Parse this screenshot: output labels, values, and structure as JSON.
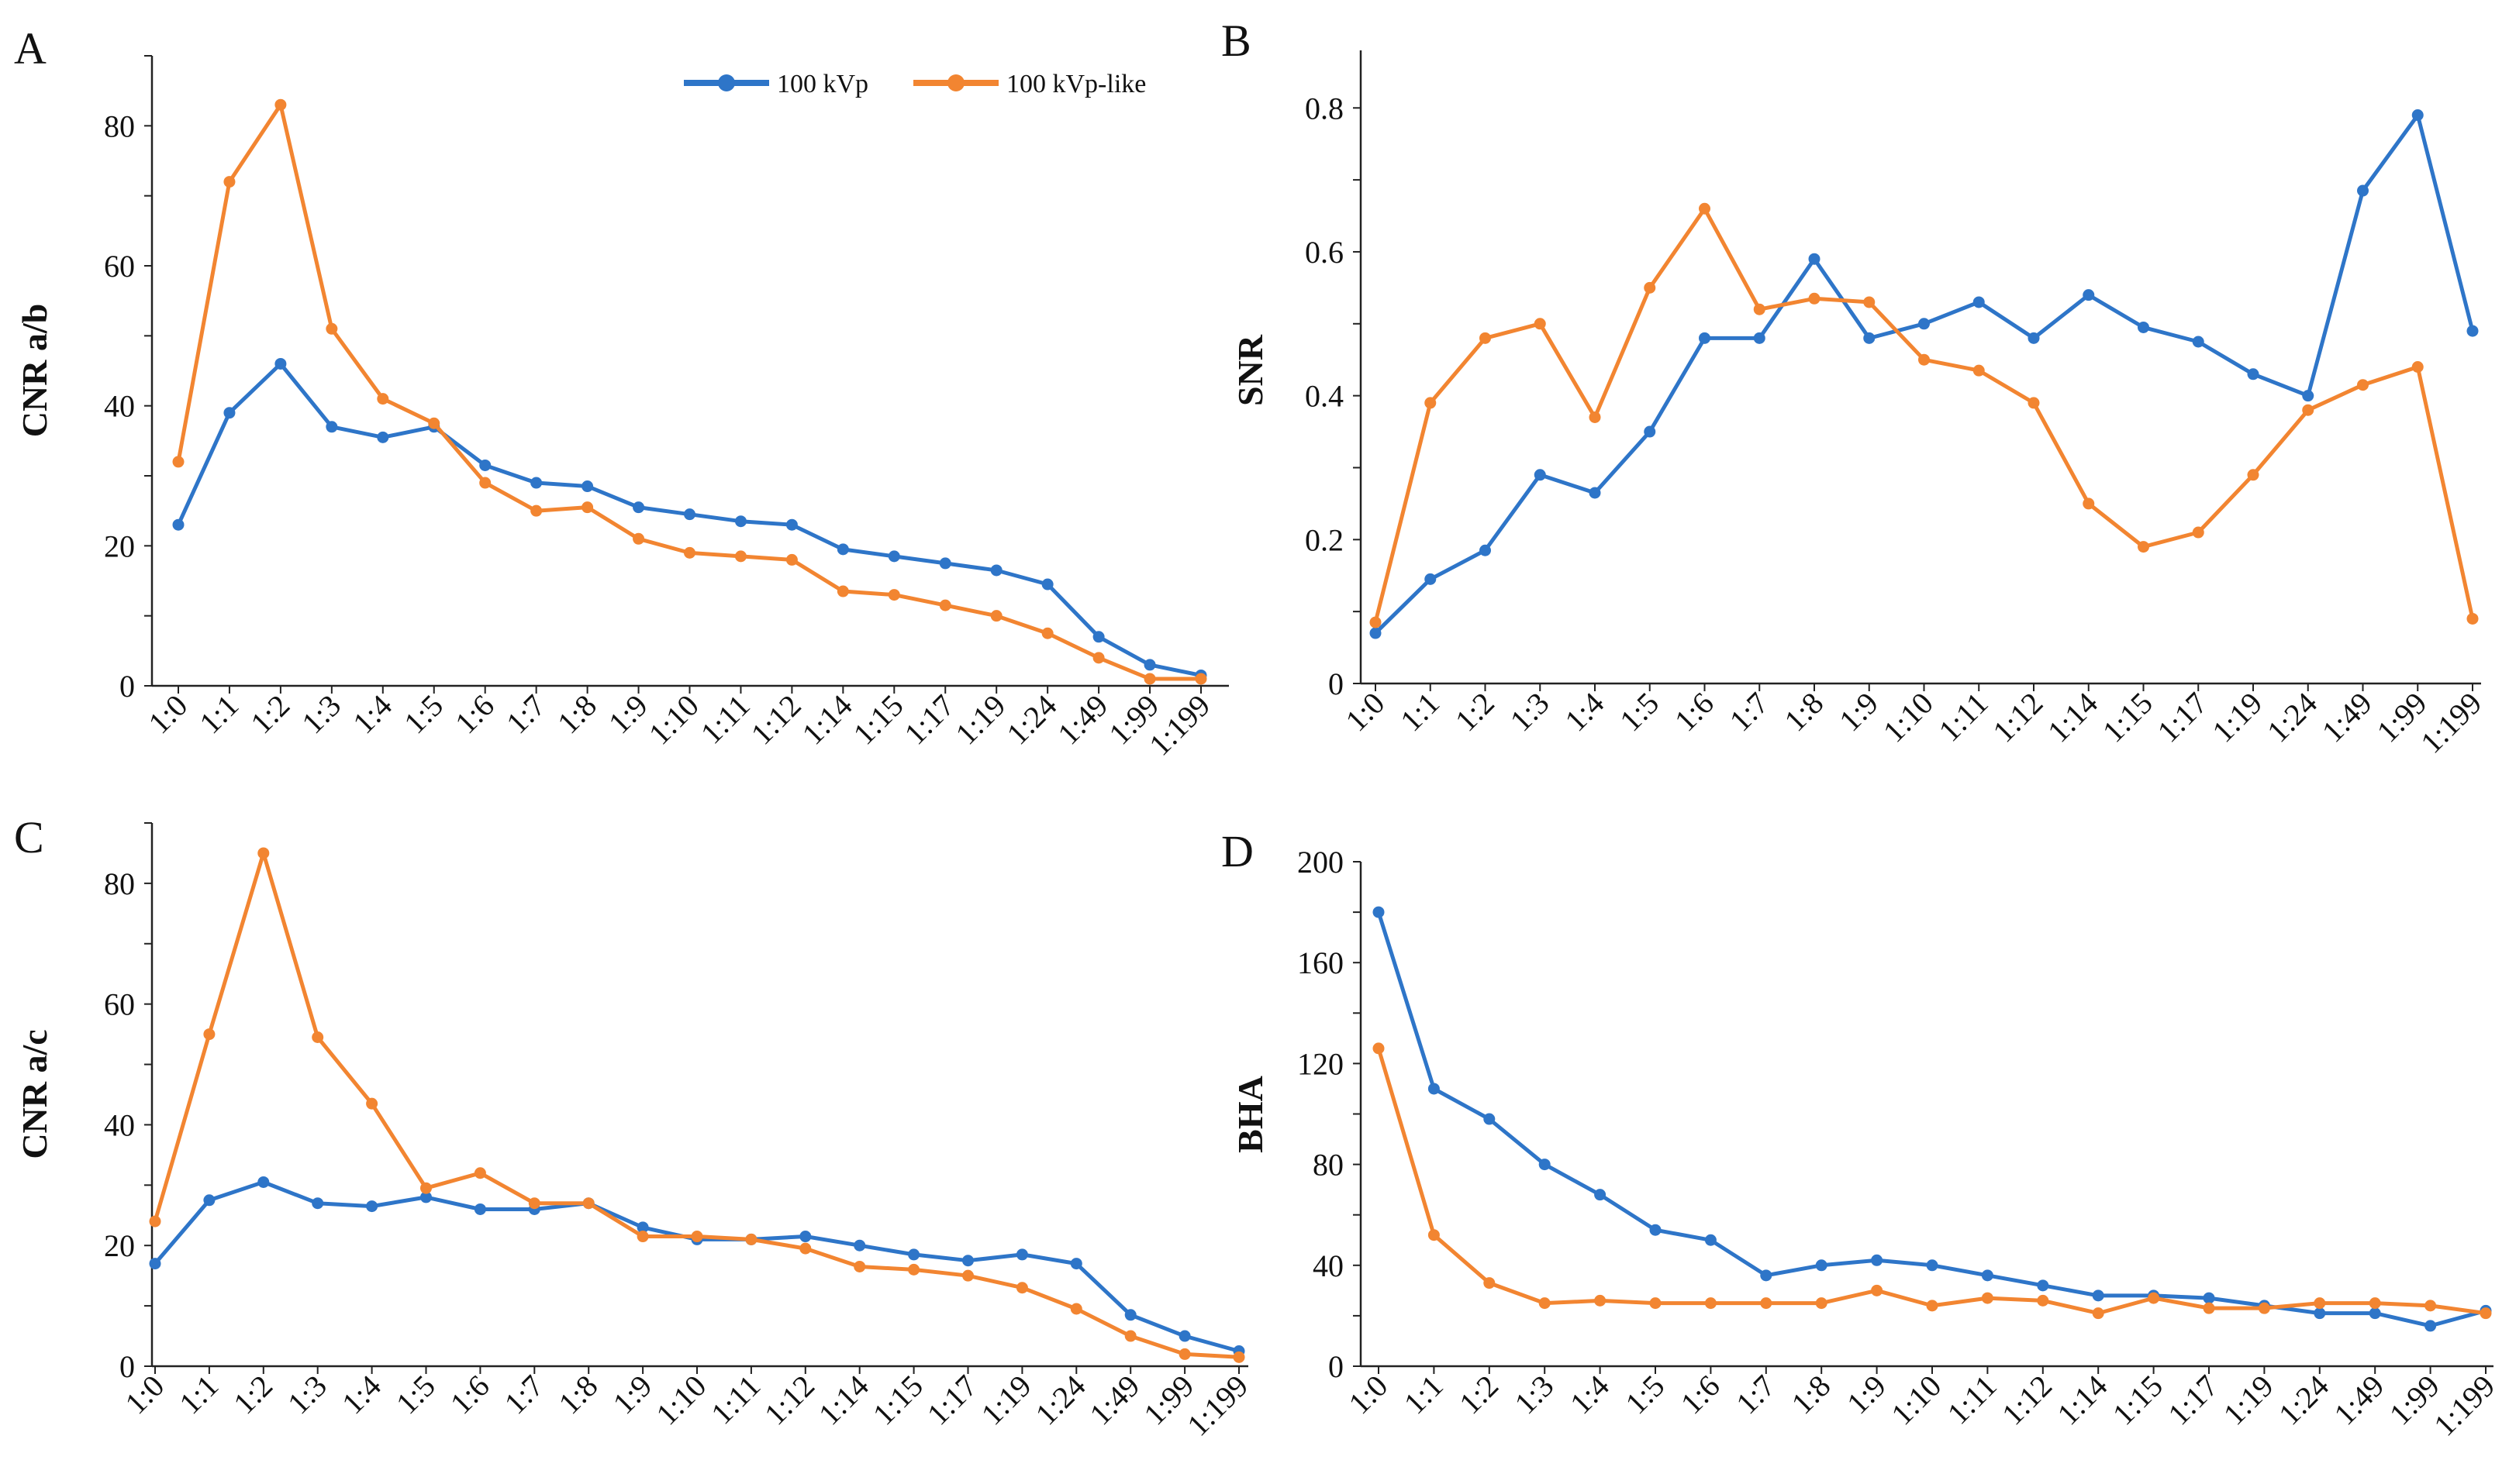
{
  "legend": {
    "items": [
      {
        "name": "100 kVp",
        "color": "#2e75c8"
      },
      {
        "name": "100 kVp-like",
        "color": "#f28531"
      }
    ]
  },
  "chart_data": [
    {
      "panel": "A",
      "type": "line",
      "title": "",
      "xlabel": "",
      "ylabel": "CNR a/b",
      "ylim": [
        0,
        90
      ],
      "yticks": [
        0,
        20,
        40,
        60,
        80
      ],
      "categories": [
        "1:0",
        "1:1",
        "1:2",
        "1:3",
        "1:4",
        "1:5",
        "1:6",
        "1:7",
        "1:8",
        "1:9",
        "1:10",
        "1:11",
        "1:12",
        "1:14",
        "1:15",
        "1:17",
        "1:19",
        "1:24",
        "1:49",
        "1:99",
        "1:199"
      ],
      "series": [
        {
          "name": "100 kVp",
          "color": "#2e75c8",
          "values": [
            23,
            39,
            46,
            37,
            35.5,
            37,
            31.5,
            29,
            28.5,
            25.5,
            24.5,
            23.5,
            23,
            19.5,
            18.5,
            17.5,
            16.5,
            14.5,
            7,
            3,
            1.5
          ]
        },
        {
          "name": "100 kVp-like",
          "color": "#f28531",
          "values": [
            32,
            72,
            83,
            51,
            41,
            37.5,
            29,
            25,
            25.5,
            21,
            19,
            18.5,
            18,
            13.5,
            13,
            11.5,
            10,
            7.5,
            4,
            1,
            1
          ]
        }
      ]
    },
    {
      "panel": "B",
      "type": "line",
      "title": "",
      "xlabel": "",
      "ylabel": "SNR",
      "ylim": [
        0,
        0.88
      ],
      "yticks": [
        0,
        0.2,
        0.4,
        0.6,
        0.8
      ],
      "ytick_labels": [
        "0",
        "0.2",
        "0.4",
        "0.6",
        "0.8"
      ],
      "categories": [
        "1:0",
        "1:1",
        "1:2",
        "1:3",
        "1:4",
        "1:5",
        "1:6",
        "1:7",
        "1:8",
        "1:9",
        "1:10",
        "1:11",
        "1:12",
        "1:14",
        "1:15",
        "1:17",
        "1:19",
        "1:24",
        "1:49",
        "1:99",
        "1:199"
      ],
      "series": [
        {
          "name": "100 kVp",
          "color": "#2e75c8",
          "values": [
            0.07,
            0.145,
            0.185,
            0.29,
            0.265,
            0.35,
            0.48,
            0.48,
            0.59,
            0.48,
            0.5,
            0.53,
            0.48,
            0.54,
            0.495,
            0.475,
            0.43,
            0.4,
            0.685,
            0.79,
            0.49
          ]
        },
        {
          "name": "100 kVp-like",
          "color": "#f28531",
          "values": [
            0.085,
            0.39,
            0.48,
            0.5,
            0.37,
            0.55,
            0.66,
            0.52,
            0.535,
            0.53,
            0.45,
            0.435,
            0.39,
            0.25,
            0.19,
            0.21,
            0.29,
            0.38,
            0.415,
            0.44,
            0.09
          ]
        }
      ]
    },
    {
      "panel": "C",
      "type": "line",
      "title": "",
      "xlabel": "",
      "ylabel": "CNR a/c",
      "ylim": [
        0,
        90
      ],
      "yticks": [
        0,
        20,
        40,
        60,
        80
      ],
      "categories": [
        "1:0",
        "1:1",
        "1:2",
        "1:3",
        "1:4",
        "1:5",
        "1:6",
        "1:7",
        "1:8",
        "1:9",
        "1:10",
        "1:11",
        "1:12",
        "1:14",
        "1:15",
        "1:17",
        "1:19",
        "1:24",
        "1:49",
        "1:99",
        "1:199"
      ],
      "series": [
        {
          "name": "100 kVp",
          "color": "#2e75c8",
          "values": [
            17,
            27.5,
            30.5,
            27,
            26.5,
            28,
            26,
            26,
            27,
            23,
            21,
            21,
            21.5,
            20,
            18.5,
            17.5,
            18.5,
            17,
            8.5,
            5,
            2.5
          ]
        },
        {
          "name": "100 kVp-like",
          "color": "#f28531",
          "values": [
            24,
            55,
            85,
            54.5,
            43.5,
            29.5,
            32,
            27,
            27,
            21.5,
            21.5,
            21,
            19.5,
            16.5,
            16,
            15,
            13,
            9.5,
            5,
            2,
            1.5
          ]
        }
      ]
    },
    {
      "panel": "D",
      "type": "line",
      "title": "",
      "xlabel": "",
      "ylabel": "BHA",
      "ylim": [
        0,
        200
      ],
      "yticks": [
        0,
        40,
        80,
        120,
        160,
        200
      ],
      "categories": [
        "1:0",
        "1:1",
        "1:2",
        "1:3",
        "1:4",
        "1:5",
        "1:6",
        "1:7",
        "1:8",
        "1:9",
        "1:10",
        "1:11",
        "1:12",
        "1:14",
        "1:15",
        "1:17",
        "1:19",
        "1:24",
        "1:49",
        "1:99",
        "1:199"
      ],
      "series": [
        {
          "name": "100 kVp",
          "color": "#2e75c8",
          "values": [
            180,
            110,
            98,
            80,
            68,
            54,
            50,
            36,
            40,
            42,
            40,
            36,
            32,
            28,
            28,
            27,
            24,
            21,
            21,
            16,
            22
          ]
        },
        {
          "name": "100 kVp-like",
          "color": "#f28531",
          "values": [
            126,
            52,
            33,
            25,
            26,
            25,
            25,
            25,
            25,
            30,
            24,
            27,
            26,
            21,
            27,
            23,
            23,
            25,
            25,
            24,
            21
          ]
        }
      ]
    }
  ]
}
